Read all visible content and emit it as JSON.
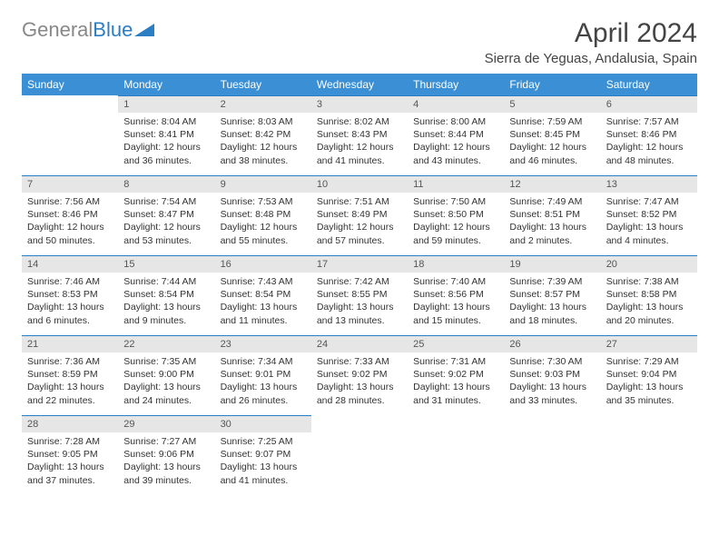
{
  "logo": {
    "general": "General",
    "blue": "Blue"
  },
  "title": "April 2024",
  "location": "Sierra de Yeguas, Andalusia, Spain",
  "colors": {
    "header_bg": "#3b8fd4",
    "header_text": "#ffffff",
    "daynum_bg": "#e6e6e6",
    "border": "#2b7dc4",
    "text": "#333333"
  },
  "day_headers": [
    "Sunday",
    "Monday",
    "Tuesday",
    "Wednesday",
    "Thursday",
    "Friday",
    "Saturday"
  ],
  "weeks": [
    [
      {
        "blank": true
      },
      {
        "n": "1",
        "sr": "8:04 AM",
        "ss": "8:41 PM",
        "dh": "12",
        "dm": "36"
      },
      {
        "n": "2",
        "sr": "8:03 AM",
        "ss": "8:42 PM",
        "dh": "12",
        "dm": "38"
      },
      {
        "n": "3",
        "sr": "8:02 AM",
        "ss": "8:43 PM",
        "dh": "12",
        "dm": "41"
      },
      {
        "n": "4",
        "sr": "8:00 AM",
        "ss": "8:44 PM",
        "dh": "12",
        "dm": "43"
      },
      {
        "n": "5",
        "sr": "7:59 AM",
        "ss": "8:45 PM",
        "dh": "12",
        "dm": "46"
      },
      {
        "n": "6",
        "sr": "7:57 AM",
        "ss": "8:46 PM",
        "dh": "12",
        "dm": "48"
      }
    ],
    [
      {
        "n": "7",
        "sr": "7:56 AM",
        "ss": "8:46 PM",
        "dh": "12",
        "dm": "50"
      },
      {
        "n": "8",
        "sr": "7:54 AM",
        "ss": "8:47 PM",
        "dh": "12",
        "dm": "53"
      },
      {
        "n": "9",
        "sr": "7:53 AM",
        "ss": "8:48 PM",
        "dh": "12",
        "dm": "55"
      },
      {
        "n": "10",
        "sr": "7:51 AM",
        "ss": "8:49 PM",
        "dh": "12",
        "dm": "57"
      },
      {
        "n": "11",
        "sr": "7:50 AM",
        "ss": "8:50 PM",
        "dh": "12",
        "dm": "59"
      },
      {
        "n": "12",
        "sr": "7:49 AM",
        "ss": "8:51 PM",
        "dh": "13",
        "dm": "2"
      },
      {
        "n": "13",
        "sr": "7:47 AM",
        "ss": "8:52 PM",
        "dh": "13",
        "dm": "4"
      }
    ],
    [
      {
        "n": "14",
        "sr": "7:46 AM",
        "ss": "8:53 PM",
        "dh": "13",
        "dm": "6"
      },
      {
        "n": "15",
        "sr": "7:44 AM",
        "ss": "8:54 PM",
        "dh": "13",
        "dm": "9"
      },
      {
        "n": "16",
        "sr": "7:43 AM",
        "ss": "8:54 PM",
        "dh": "13",
        "dm": "11"
      },
      {
        "n": "17",
        "sr": "7:42 AM",
        "ss": "8:55 PM",
        "dh": "13",
        "dm": "13"
      },
      {
        "n": "18",
        "sr": "7:40 AM",
        "ss": "8:56 PM",
        "dh": "13",
        "dm": "15"
      },
      {
        "n": "19",
        "sr": "7:39 AM",
        "ss": "8:57 PM",
        "dh": "13",
        "dm": "18"
      },
      {
        "n": "20",
        "sr": "7:38 AM",
        "ss": "8:58 PM",
        "dh": "13",
        "dm": "20"
      }
    ],
    [
      {
        "n": "21",
        "sr": "7:36 AM",
        "ss": "8:59 PM",
        "dh": "13",
        "dm": "22"
      },
      {
        "n": "22",
        "sr": "7:35 AM",
        "ss": "9:00 PM",
        "dh": "13",
        "dm": "24"
      },
      {
        "n": "23",
        "sr": "7:34 AM",
        "ss": "9:01 PM",
        "dh": "13",
        "dm": "26"
      },
      {
        "n": "24",
        "sr": "7:33 AM",
        "ss": "9:02 PM",
        "dh": "13",
        "dm": "28"
      },
      {
        "n": "25",
        "sr": "7:31 AM",
        "ss": "9:02 PM",
        "dh": "13",
        "dm": "31"
      },
      {
        "n": "26",
        "sr": "7:30 AM",
        "ss": "9:03 PM",
        "dh": "13",
        "dm": "33"
      },
      {
        "n": "27",
        "sr": "7:29 AM",
        "ss": "9:04 PM",
        "dh": "13",
        "dm": "35"
      }
    ],
    [
      {
        "n": "28",
        "sr": "7:28 AM",
        "ss": "9:05 PM",
        "dh": "13",
        "dm": "37"
      },
      {
        "n": "29",
        "sr": "7:27 AM",
        "ss": "9:06 PM",
        "dh": "13",
        "dm": "39"
      },
      {
        "n": "30",
        "sr": "7:25 AM",
        "ss": "9:07 PM",
        "dh": "13",
        "dm": "41"
      },
      {
        "blank": true
      },
      {
        "blank": true
      },
      {
        "blank": true
      },
      {
        "blank": true
      }
    ]
  ],
  "labels": {
    "sunrise": "Sunrise: ",
    "sunset": "Sunset: ",
    "daylight": "Daylight: ",
    "hours": " hours",
    "and": "and ",
    "minutes": " minutes."
  }
}
